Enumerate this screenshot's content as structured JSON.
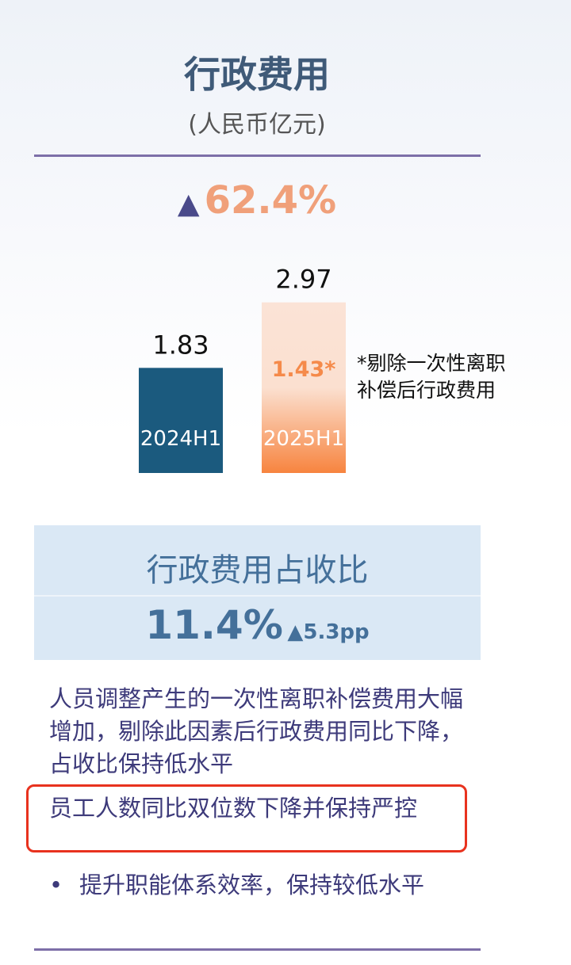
{
  "title": "行政费用",
  "unit": "(人民币亿元)",
  "growth": {
    "arrow": "▲",
    "value": "62.4%"
  },
  "chart_data": {
    "type": "bar",
    "categories": [
      "2024H1",
      "2025H1"
    ],
    "values": [
      1.83,
      2.97
    ],
    "value_labels": [
      "1.83",
      "2.97"
    ],
    "annotation": "1.43*",
    "colors": [
      "#1b5a7e",
      "#f58a4a"
    ],
    "footnote": "*剔除一次性离职补偿后行政费用"
  },
  "note_lines": [
    "*剔除一次性离职",
    "补偿后行政费用"
  ],
  "ratio": {
    "title": "行政费用占收比",
    "value": "11.4%",
    "change": "▲5.3pp"
  },
  "paragraphs": [
    "人员调整产生的一次性离职补偿费用大幅增加，剔除此因素后行政费用同比下降，占收比保持低水平",
    "员工人数同比双位数下降并保持严控"
  ],
  "bullet": {
    "marker": "•",
    "text": "提升职能体系效率，保持较低水平"
  }
}
